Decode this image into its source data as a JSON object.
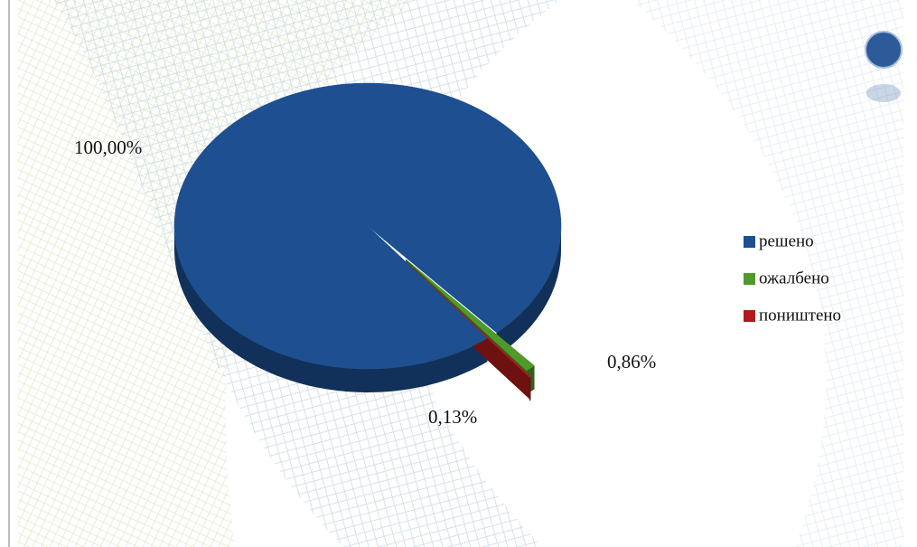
{
  "chart_data": {
    "type": "pie",
    "categories": [
      "решено",
      "ожалбено",
      "поништено"
    ],
    "values": [
      100,
      0.86,
      0.13
    ],
    "value_labels": [
      "100,00%",
      "0,86%",
      "0,13%"
    ],
    "colors": [
      "#1d4f91",
      "#4f9a2b",
      "#b01c1c"
    ]
  }
}
